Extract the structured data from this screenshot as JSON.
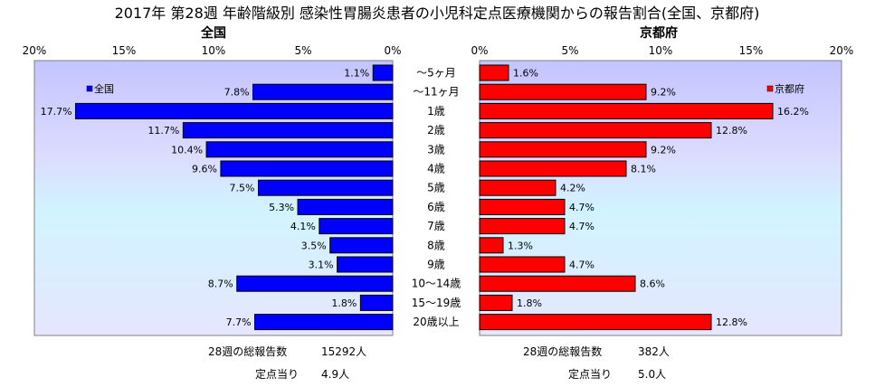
{
  "title": "2017年 第28週 年齢階級別 感染性胃腸炎患者の小児科定点医療機関からの報告割合(全国、京都府)",
  "chart_data": [
    {
      "type": "bar",
      "orientation": "horizontal",
      "direction": "right-to-left",
      "title": "全国",
      "categories": [
        "～5ヶ月",
        "～11ヶ月",
        "1歳",
        "2歳",
        "3歳",
        "4歳",
        "5歳",
        "6歳",
        "7歳",
        "8歳",
        "9歳",
        "10～14歳",
        "15～19歳",
        "20歳以上"
      ],
      "series": [
        {
          "name": "全国",
          "values": [
            1.1,
            7.8,
            17.7,
            11.7,
            10.4,
            9.6,
            7.5,
            5.3,
            4.1,
            3.5,
            3.1,
            8.7,
            1.8,
            7.7
          ],
          "color": "#0000ff"
        }
      ],
      "value_labels": [
        "1.1%",
        "7.8%",
        "17.7%",
        "11.7%",
        "10.4%",
        "9.6%",
        "7.5%",
        "5.3%",
        "4.1%",
        "3.5%",
        "3.1%",
        "8.7%",
        "1.8%",
        "7.7%"
      ],
      "xlim": [
        0,
        20
      ],
      "xticks": [
        "20%",
        "15%",
        "10%",
        "5%",
        "0%"
      ],
      "legend": "top-left",
      "gridlines": false
    },
    {
      "type": "bar",
      "orientation": "horizontal",
      "direction": "left-to-right",
      "title": "京都府",
      "categories": [
        "～5ヶ月",
        "～11ヶ月",
        "1歳",
        "2歳",
        "3歳",
        "4歳",
        "5歳",
        "6歳",
        "7歳",
        "8歳",
        "9歳",
        "10～14歳",
        "15～19歳",
        "20歳以上"
      ],
      "series": [
        {
          "name": "京都府",
          "values": [
            1.6,
            9.2,
            16.2,
            12.8,
            9.2,
            8.1,
            4.2,
            4.7,
            4.7,
            1.3,
            4.7,
            8.6,
            1.8,
            12.8
          ],
          "color": "#ff0000"
        }
      ],
      "value_labels": [
        "1.6%",
        "9.2%",
        "16.2%",
        "12.8%",
        "9.2%",
        "8.1%",
        "4.2%",
        "4.7%",
        "4.7%",
        "1.3%",
        "4.7%",
        "8.6%",
        "1.8%",
        "12.8%"
      ],
      "xlim": [
        0,
        20
      ],
      "xticks": [
        "0%",
        "5%",
        "10%",
        "15%",
        "20%"
      ],
      "legend": "top-right",
      "gridlines": false
    }
  ],
  "footer": {
    "national_total_label": "28週の総報告数",
    "national_total_value": "15292人",
    "national_per_label": "定点当り",
    "national_per_value": "4.9人",
    "kyoto_total_label": "28週の総報告数",
    "kyoto_total_value": "382人",
    "kyoto_per_label": "定点当り",
    "kyoto_per_value": "5.0人"
  },
  "colors": {
    "plot_bg_top": "#c8c8ff",
    "plot_bg_bottom": "#e8e8ff",
    "national_bar": "#0000ff",
    "kyoto_bar": "#ff0000",
    "bar_outline": "#000000"
  }
}
